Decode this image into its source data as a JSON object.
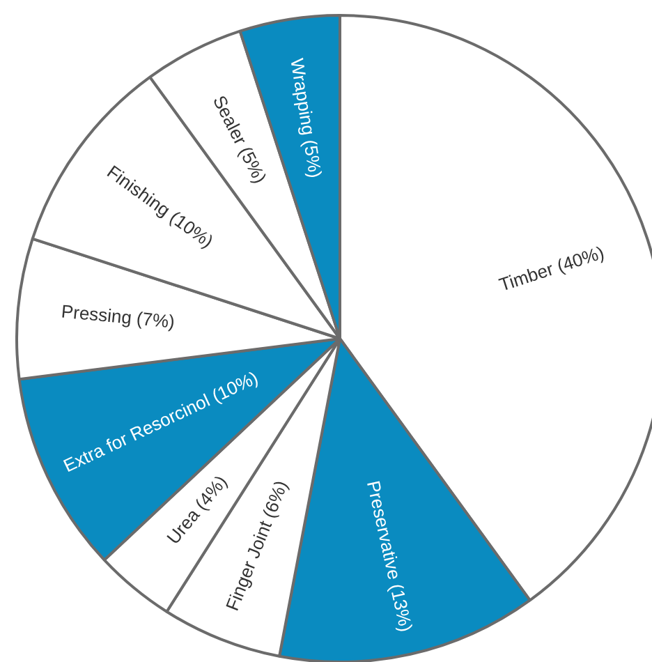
{
  "chart_data": {
    "type": "pie",
    "legend": false,
    "categories": [
      "Timber (40%)",
      "Preservative (13%)",
      "Finger Joint (6%)",
      "Urea (4%)",
      "Extra for Resorcinol (10%)",
      "Pressing (7%)",
      "Finishing (10%)",
      "Sealer (5%)",
      "Wrapping (5%)"
    ],
    "values": [
      40,
      13,
      6,
      4,
      10,
      7,
      10,
      5,
      5
    ],
    "colors": [
      "#ffffff",
      "#0a8bc0",
      "#ffffff",
      "#ffffff",
      "#0a8bc0",
      "#ffffff",
      "#ffffff",
      "#ffffff",
      "#0a8bc0"
    ]
  }
}
